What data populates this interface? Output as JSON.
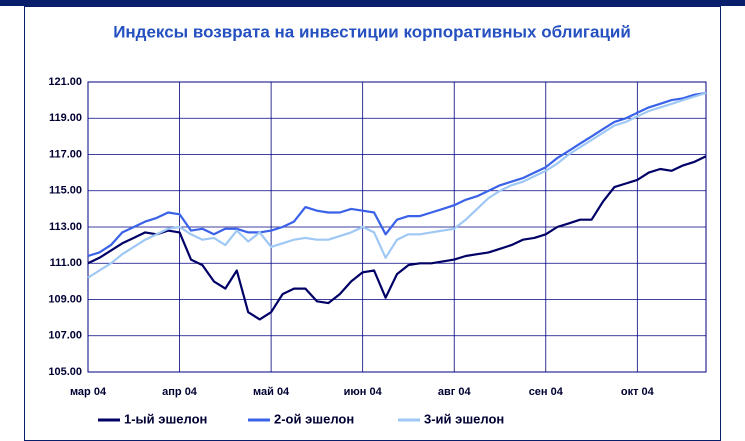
{
  "chart_data": {
    "type": "line",
    "title": "Индексы возврата на инвестиции корпоративных облигаций",
    "categories": [
      "мар 04",
      null,
      null,
      null,
      null,
      null,
      null,
      null,
      "апр 04",
      null,
      null,
      null,
      null,
      null,
      null,
      null,
      "май 04",
      null,
      null,
      null,
      null,
      null,
      null,
      null,
      "июн 04",
      null,
      null,
      null,
      null,
      null,
      null,
      null,
      "авг 04",
      null,
      null,
      null,
      null,
      null,
      null,
      null,
      "сен 04",
      null,
      null,
      null,
      null,
      null,
      null,
      null,
      "окт 04",
      null,
      null,
      null,
      null,
      null,
      null
    ],
    "series": [
      {
        "name": "1-ый эшелон",
        "color": "#000066",
        "values": [
          111.0,
          111.3,
          111.7,
          112.1,
          112.4,
          112.7,
          112.6,
          112.8,
          112.7,
          111.2,
          110.9,
          110.0,
          109.6,
          110.6,
          108.3,
          107.9,
          108.3,
          109.3,
          109.6,
          109.6,
          108.9,
          108.8,
          109.3,
          110.0,
          110.5,
          110.6,
          109.1,
          110.4,
          110.9,
          111.0,
          111.0,
          111.1,
          111.2,
          111.4,
          111.5,
          111.6,
          111.8,
          112.0,
          112.3,
          112.4,
          112.6,
          113.0,
          113.2,
          113.4,
          113.4,
          114.4,
          115.2,
          115.4,
          115.6,
          116.0,
          116.2,
          116.1,
          116.4,
          116.6,
          116.9
        ]
      },
      {
        "name": "2-ой эшелон",
        "color": "#3a62e8",
        "values": [
          111.4,
          111.6,
          112.0,
          112.7,
          113.0,
          113.3,
          113.5,
          113.8,
          113.7,
          112.8,
          112.9,
          112.6,
          112.9,
          112.9,
          112.7,
          112.7,
          112.8,
          113.0,
          113.3,
          114.1,
          113.9,
          113.8,
          113.8,
          114.0,
          113.9,
          113.8,
          112.6,
          113.4,
          113.6,
          113.6,
          113.8,
          114.0,
          114.2,
          114.5,
          114.7,
          115.0,
          115.3,
          115.5,
          115.7,
          116.0,
          116.3,
          116.8,
          117.2,
          117.6,
          118.0,
          118.4,
          118.8,
          119.0,
          119.3,
          119.6,
          119.8,
          120.0,
          120.1,
          120.3,
          120.4
        ]
      },
      {
        "name": "3-ий эшелон",
        "color": "#9fc8f5",
        "values": [
          110.2,
          110.6,
          111.0,
          111.5,
          111.9,
          112.3,
          112.6,
          112.9,
          113.0,
          112.6,
          112.3,
          112.4,
          112.0,
          112.8,
          112.2,
          112.7,
          111.9,
          112.1,
          112.3,
          112.4,
          112.3,
          112.3,
          112.5,
          112.7,
          113.0,
          112.7,
          111.3,
          112.3,
          112.6,
          112.6,
          112.7,
          112.8,
          112.9,
          113.4,
          114.0,
          114.6,
          115.0,
          115.3,
          115.5,
          115.8,
          116.1,
          116.5,
          117.0,
          117.4,
          117.8,
          118.2,
          118.6,
          118.8,
          119.1,
          119.4,
          119.6,
          119.8,
          120.0,
          120.2,
          120.4
        ]
      }
    ],
    "ylim": [
      105,
      121
    ],
    "yticks": [
      {
        "value": 105,
        "label": "105.00"
      },
      {
        "value": 107,
        "label": "107.00"
      },
      {
        "value": 109,
        "label": "109.00"
      },
      {
        "value": 111,
        "label": "111.00"
      },
      {
        "value": 113,
        "label": "113.00"
      },
      {
        "value": 115,
        "label": "115.00"
      },
      {
        "value": 117,
        "label": "117.00"
      },
      {
        "value": 119,
        "label": "119.00"
      },
      {
        "value": 121,
        "label": "121.00"
      }
    ],
    "grid": true,
    "legend": "bottom"
  }
}
